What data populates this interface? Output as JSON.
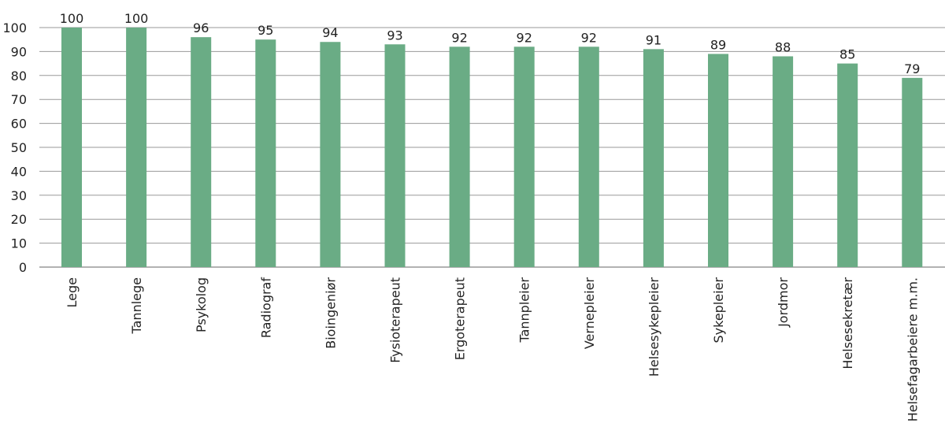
{
  "chart_data": {
    "type": "bar",
    "title": "",
    "xlabel": "",
    "ylabel": "",
    "ylim": [
      0,
      100
    ],
    "yticks": [
      0,
      10,
      20,
      30,
      40,
      50,
      60,
      70,
      80,
      90,
      100
    ],
    "grid": true,
    "bar_color": "#6aac85",
    "categories": [
      "Lege",
      "Tannlege",
      "Psykolog",
      "Radiograf",
      "Bioingeniør",
      "Fysioterapeut",
      "Ergoterapeut",
      "Tannpleier",
      "Vernepleier",
      "Helsesykepleier",
      "Sykepleier",
      "Jordmor",
      "Helsesekretær",
      "Helsefagarbeiere m.m."
    ],
    "values": [
      100,
      100,
      96,
      95,
      94,
      93,
      92,
      92,
      92,
      91,
      89,
      88,
      85,
      79
    ]
  }
}
